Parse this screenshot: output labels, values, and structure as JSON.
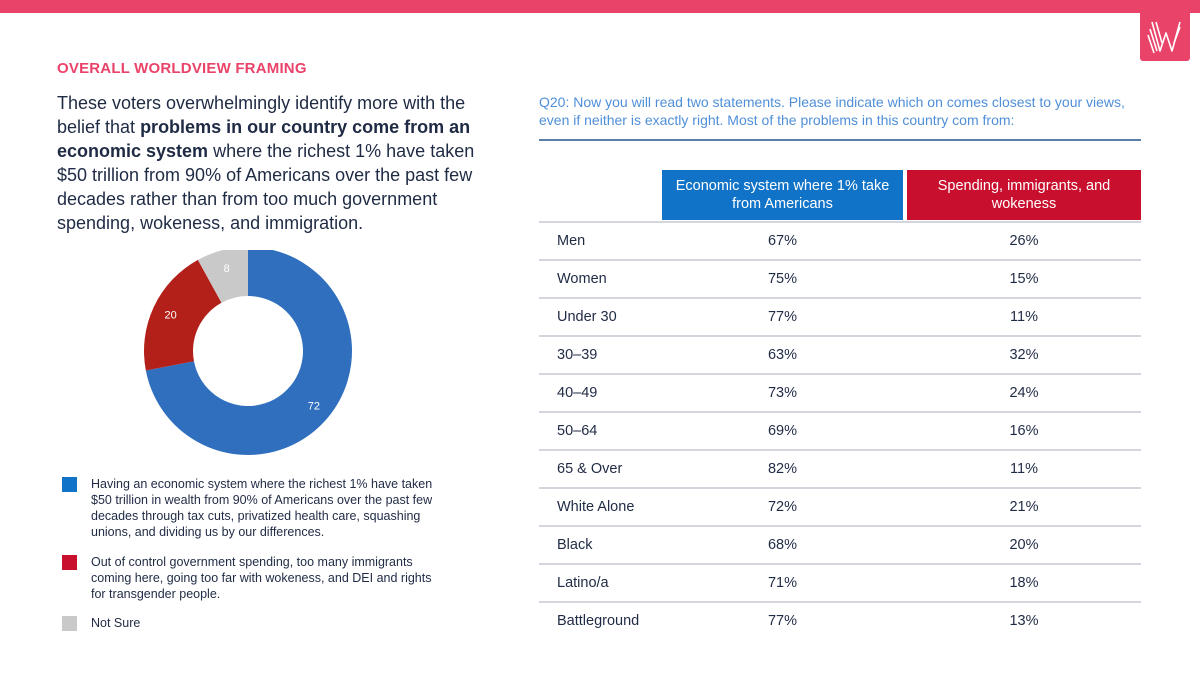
{
  "section_title": "OVERALL WORLDVIEW FRAMING",
  "headline": {
    "part1": "These voters overwhelmingly identify more with the belief that ",
    "bold": "problems in our country come from an economic system",
    "part2": " where the richest 1% have taken $50 trillion from 90% of Americans over the past few decades rather than from too much government spending, wokeness, and immigration."
  },
  "colors": {
    "accent": "#e9436a",
    "econ": "#1173c7",
    "spend": "#c8102e",
    "donut_blue": "#2f6fbd",
    "donut_red": "#b32019",
    "donut_gray": "#c9c9c9",
    "question": "#4f8fd9"
  },
  "chart_data": [
    {
      "type": "pie",
      "style": "donut",
      "values": [
        72,
        20,
        8
      ],
      "labels": [
        "72",
        "20",
        "8"
      ],
      "legend": [
        "Having an economic system where the richest 1% have taken $50 trillion in wealth from 90% of Americans over the past few decades through tax cuts, privatized health care, squashing unions, and dividing us by our differences.",
        "Out of control government spending, too many immigrants coming here, going too far with wokeness, and DEI and rights for transgender people.",
        "Not Sure"
      ]
    },
    {
      "type": "table",
      "question": "Q20: Now you will read two statements. Please indicate which on comes closest to your views, even if neither is exactly right. Most of the problems in this country com from:",
      "columns": [
        "Economic system where 1% take from Americans",
        "Spending, immigrants, and wokeness"
      ],
      "rows": [
        {
          "label": "Men",
          "econ": "67%",
          "spend": "26%"
        },
        {
          "label": "Women",
          "econ": "75%",
          "spend": "15%"
        },
        {
          "label": "Under 30",
          "econ": "77%",
          "spend": "11%"
        },
        {
          "label": "30–39",
          "econ": "63%",
          "spend": "32%"
        },
        {
          "label": "40–49",
          "econ": "73%",
          "spend": "24%"
        },
        {
          "label": "50–64",
          "econ": "69%",
          "spend": "16%"
        },
        {
          "label": "65 & Over",
          "econ": "82%",
          "spend": "11%"
        },
        {
          "label": "White Alone",
          "econ": "72%",
          "spend": "21%"
        },
        {
          "label": "Black",
          "econ": "68%",
          "spend": "20%"
        },
        {
          "label": "Latino/a",
          "econ": "71%",
          "spend": "18%"
        },
        {
          "label": "Battleground",
          "econ": "77%",
          "spend": "13%"
        }
      ]
    }
  ]
}
